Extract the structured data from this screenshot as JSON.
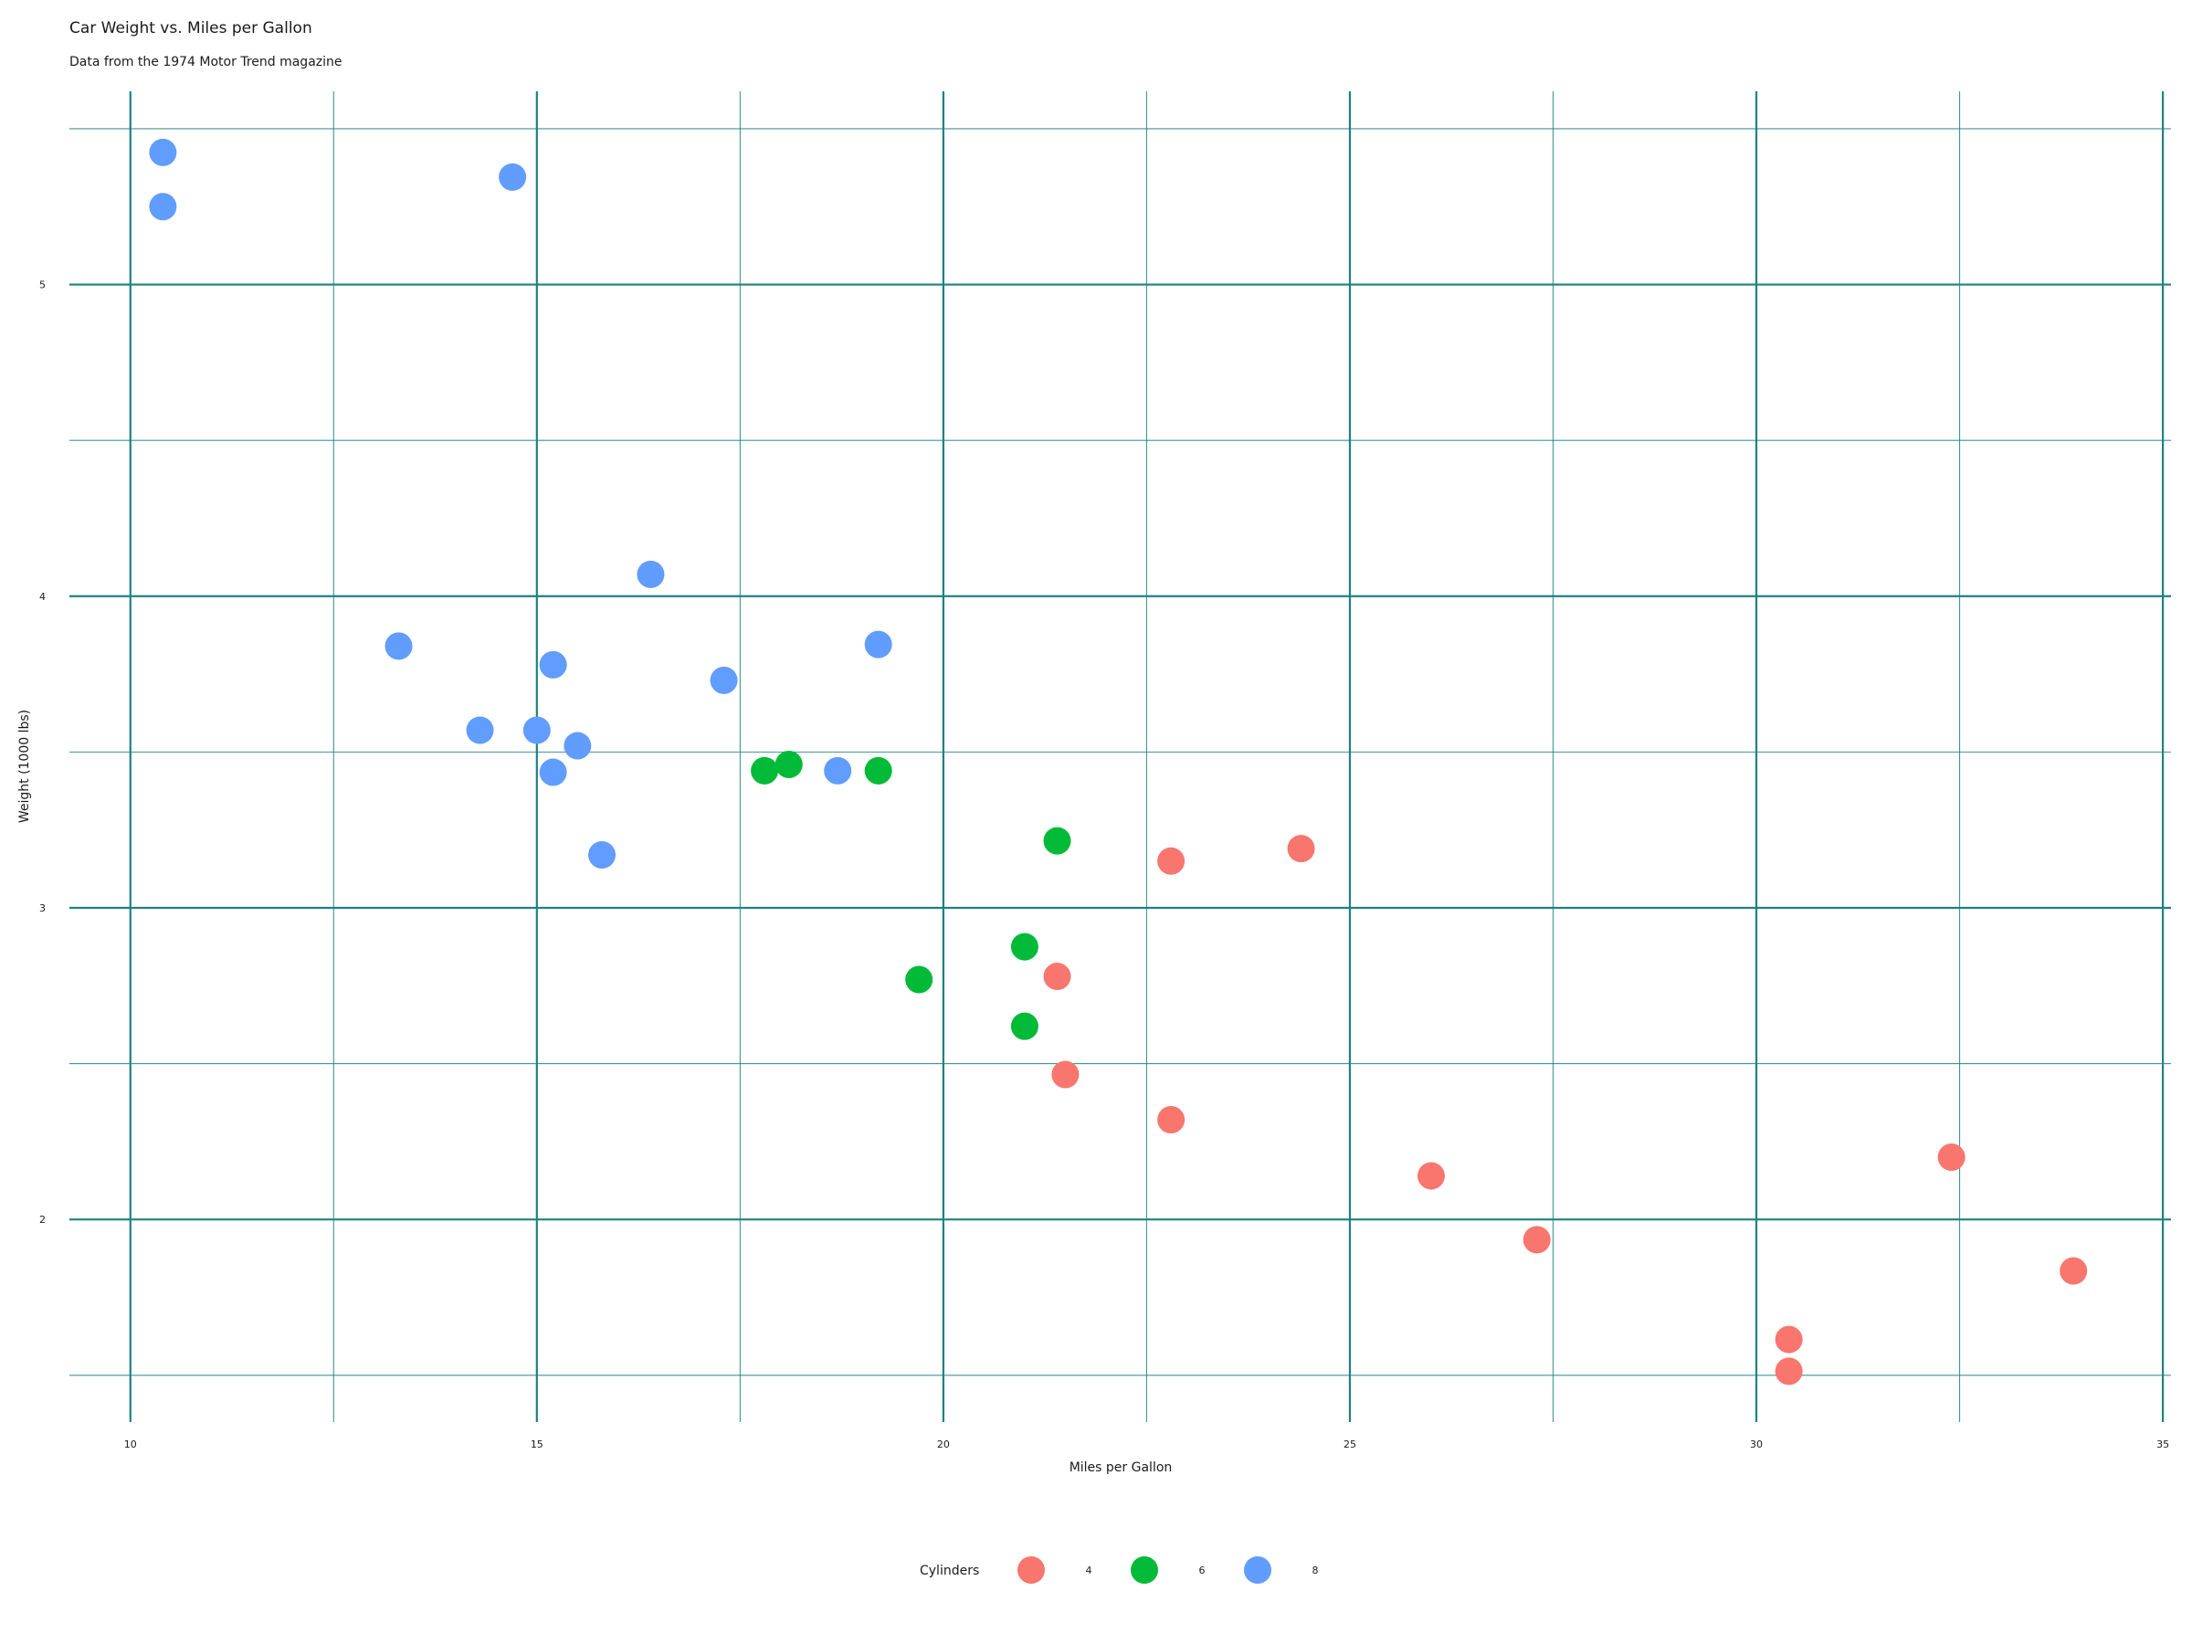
{
  "chart_data": {
    "type": "scatter",
    "title": "Car Weight vs. Miles per Gallon",
    "subtitle": "Data from the 1974 Motor Trend magazine",
    "xlabel": "Miles per Gallon",
    "ylabel": "Weight (1000 lbs)",
    "xlim": [
      9.25,
      35.1
    ],
    "ylim": [
      1.35,
      5.62
    ],
    "xticks": [
      10,
      15,
      20,
      25,
      30,
      35
    ],
    "yticks": [
      2,
      3,
      4,
      5
    ],
    "grid": true,
    "legend": {
      "title": "Cylinders",
      "placement": "bottom-center"
    },
    "series": [
      {
        "name": "4",
        "color": "#F8766D",
        "points": [
          {
            "x": 22.8,
            "y": 2.32
          },
          {
            "x": 24.4,
            "y": 3.19
          },
          {
            "x": 22.8,
            "y": 3.15
          },
          {
            "x": 32.4,
            "y": 2.2
          },
          {
            "x": 30.4,
            "y": 1.615
          },
          {
            "x": 33.9,
            "y": 1.835
          },
          {
            "x": 21.5,
            "y": 2.465
          },
          {
            "x": 27.3,
            "y": 1.935
          },
          {
            "x": 26.0,
            "y": 2.14
          },
          {
            "x": 30.4,
            "y": 1.513
          },
          {
            "x": 21.4,
            "y": 2.78
          }
        ]
      },
      {
        "name": "6",
        "color": "#00BA38",
        "points": [
          {
            "x": 21.0,
            "y": 2.62
          },
          {
            "x": 21.0,
            "y": 2.875
          },
          {
            "x": 21.4,
            "y": 3.215
          },
          {
            "x": 18.1,
            "y": 3.46
          },
          {
            "x": 19.2,
            "y": 3.44
          },
          {
            "x": 17.8,
            "y": 3.44
          },
          {
            "x": 19.7,
            "y": 2.77
          }
        ]
      },
      {
        "name": "8",
        "color": "#619CFF",
        "points": [
          {
            "x": 18.7,
            "y": 3.44
          },
          {
            "x": 14.3,
            "y": 3.57
          },
          {
            "x": 16.4,
            "y": 4.07
          },
          {
            "x": 17.3,
            "y": 3.73
          },
          {
            "x": 15.2,
            "y": 3.78
          },
          {
            "x": 10.4,
            "y": 5.25
          },
          {
            "x": 10.4,
            "y": 5.424
          },
          {
            "x": 14.7,
            "y": 5.345
          },
          {
            "x": 15.5,
            "y": 3.52
          },
          {
            "x": 15.2,
            "y": 3.435
          },
          {
            "x": 13.3,
            "y": 3.84
          },
          {
            "x": 19.2,
            "y": 3.845
          },
          {
            "x": 15.8,
            "y": 3.17
          },
          {
            "x": 15.0,
            "y": 3.57
          }
        ]
      }
    ]
  }
}
